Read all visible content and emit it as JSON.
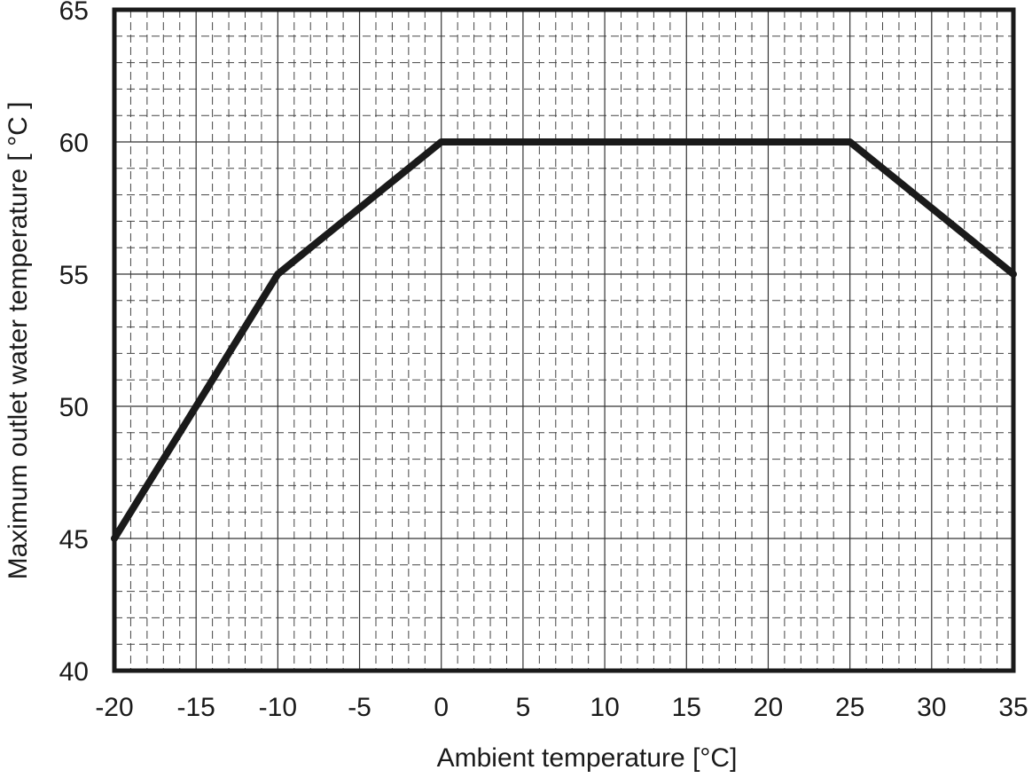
{
  "chart_data": {
    "type": "line",
    "title": "",
    "xlabel": "Ambient temperature [°C]",
    "ylabel": "Maximum outlet water temperature [ °C ]",
    "xlim": [
      -20,
      35
    ],
    "ylim": [
      40,
      65
    ],
    "x_ticks": [
      -20,
      -15,
      -10,
      -5,
      0,
      5,
      10,
      15,
      20,
      25,
      30,
      35
    ],
    "x_tick_labels": [
      "-20",
      "-15",
      "-10",
      "-5",
      "0",
      "5",
      "10",
      "15",
      "20",
      "25",
      "30",
      "35"
    ],
    "y_ticks": [
      40,
      45,
      50,
      55,
      60,
      65
    ],
    "y_tick_labels": [
      "40",
      "45",
      "50",
      "55",
      "60",
      "65"
    ],
    "grid": true,
    "legend": "none",
    "series": [
      {
        "x": [
          -20,
          -10,
          0,
          25,
          35
        ],
        "y": [
          45,
          55,
          60,
          60,
          55
        ],
        "color": "#1a1a1a"
      }
    ]
  }
}
